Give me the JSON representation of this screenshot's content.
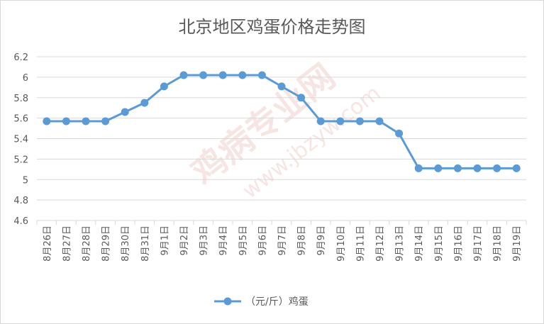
{
  "chart_data": {
    "type": "line",
    "title": "北京地区鸡蛋价格走势图",
    "categories": [
      "8月26日",
      "8月27日",
      "8月28日",
      "8月29日",
      "8月30日",
      "8月31日",
      "9月1日",
      "9月2日",
      "9月3日",
      "9月4日",
      "9月5日",
      "9月6日",
      "9月7日",
      "9月8日",
      "9月9日",
      "9月10日",
      "9月11日",
      "9月12日",
      "9月13日",
      "9月14日",
      "9月15日",
      "9月16日",
      "9月17日",
      "9月18日",
      "9月19日"
    ],
    "series": [
      {
        "name": "（元/斤）鸡蛋",
        "values": [
          5.57,
          5.57,
          5.57,
          5.57,
          5.66,
          5.75,
          5.91,
          6.02,
          6.02,
          6.02,
          6.02,
          6.02,
          5.91,
          5.8,
          5.57,
          5.57,
          5.57,
          5.57,
          5.45,
          5.11,
          5.11,
          5.11,
          5.11,
          5.11,
          5.11
        ],
        "color": "#5b9bd5"
      }
    ],
    "ylim": [
      4.6,
      6.2
    ],
    "yticks": [
      "4.6",
      "4.8",
      "5",
      "5.2",
      "5.4",
      "5.6",
      "5.8",
      "6",
      "6.2"
    ],
    "grid": true,
    "legend_position": "bottom"
  }
}
